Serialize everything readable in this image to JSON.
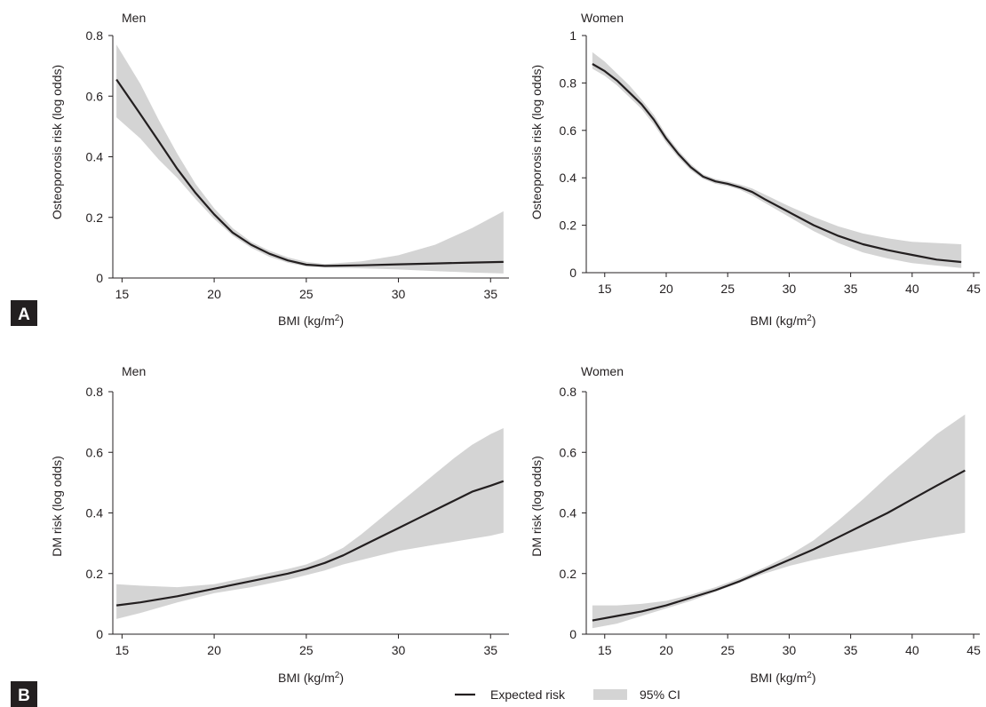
{
  "panel_labels": [
    "A",
    "B"
  ],
  "legend": {
    "expected_label": "Expected risk",
    "ci_label": "95% CI",
    "line_color": "#231f20",
    "band_color": "#d4d4d4"
  },
  "chart_data": [
    {
      "type": "line",
      "title": "Men",
      "xlabel": "BMI (kg/m²)",
      "ylabel": "Osteoporosis risk (log odds)",
      "xlim": [
        14.5,
        36
      ],
      "ylim": [
        0,
        0.8
      ],
      "xticks": [
        15,
        20,
        25,
        30,
        35
      ],
      "yticks": [
        0,
        0.2,
        0.4,
        0.6,
        0.8
      ],
      "ytick_labels": [
        "0",
        "0.2",
        "0.4",
        "0.6",
        "0.8"
      ],
      "series": [
        {
          "name": "Expected risk",
          "x": [
            14.7,
            16,
            17,
            18,
            19,
            20,
            21,
            22,
            23,
            24,
            25,
            26,
            28,
            30,
            32,
            34,
            35.7
          ],
          "y": [
            0.655,
            0.54,
            0.45,
            0.36,
            0.28,
            0.21,
            0.15,
            0.11,
            0.08,
            0.058,
            0.044,
            0.04,
            0.042,
            0.045,
            0.048,
            0.051,
            0.053
          ],
          "lower": [
            0.53,
            0.46,
            0.39,
            0.33,
            0.26,
            0.195,
            0.14,
            0.1,
            0.07,
            0.05,
            0.038,
            0.035,
            0.032,
            0.028,
            0.023,
            0.018,
            0.015
          ],
          "upper": [
            0.77,
            0.64,
            0.52,
            0.41,
            0.31,
            0.23,
            0.165,
            0.12,
            0.09,
            0.068,
            0.053,
            0.046,
            0.055,
            0.075,
            0.11,
            0.165,
            0.22
          ]
        }
      ]
    },
    {
      "type": "line",
      "title": "Women",
      "xlabel": "BMI (kg/m²)",
      "ylabel": "Osteoporosis risk (log odds)",
      "xlim": [
        13.5,
        45.5
      ],
      "ylim": [
        0,
        1
      ],
      "xticks": [
        15,
        20,
        25,
        30,
        35,
        40,
        45
      ],
      "yticks": [
        0,
        0.2,
        0.4,
        0.6,
        0.8,
        1
      ],
      "ytick_labels": [
        "0",
        "0.2",
        "0.4",
        "0.6",
        "0.8",
        "1"
      ],
      "series": [
        {
          "name": "Expected risk",
          "x": [
            14,
            15,
            16,
            17,
            18,
            19,
            20,
            21,
            22,
            23,
            24,
            25,
            26,
            27,
            28,
            30,
            32,
            34,
            36,
            38,
            40,
            42,
            44
          ],
          "y": [
            0.88,
            0.85,
            0.81,
            0.76,
            0.71,
            0.645,
            0.565,
            0.5,
            0.445,
            0.405,
            0.385,
            0.375,
            0.36,
            0.34,
            0.31,
            0.255,
            0.2,
            0.155,
            0.12,
            0.095,
            0.075,
            0.055,
            0.045
          ],
          "lower": [
            0.86,
            0.83,
            0.79,
            0.74,
            0.69,
            0.625,
            0.548,
            0.485,
            0.432,
            0.395,
            0.375,
            0.365,
            0.35,
            0.325,
            0.295,
            0.235,
            0.175,
            0.125,
            0.085,
            0.06,
            0.04,
            0.03,
            0.02
          ],
          "upper": [
            0.93,
            0.89,
            0.84,
            0.79,
            0.73,
            0.665,
            0.582,
            0.515,
            0.458,
            0.415,
            0.395,
            0.385,
            0.372,
            0.355,
            0.33,
            0.28,
            0.235,
            0.195,
            0.165,
            0.145,
            0.13,
            0.125,
            0.12
          ]
        }
      ]
    },
    {
      "type": "line",
      "title": "Men",
      "xlabel": "BMI (kg/m²)",
      "ylabel": "DM risk (log odds)",
      "xlim": [
        14.5,
        36
      ],
      "ylim": [
        0,
        0.8
      ],
      "xticks": [
        15,
        20,
        25,
        30,
        35
      ],
      "yticks": [
        0,
        0.2,
        0.4,
        0.6,
        0.8
      ],
      "ytick_labels": [
        "0",
        "0.2",
        "0.4",
        "0.6",
        "0.8"
      ],
      "series": [
        {
          "name": "Expected risk",
          "x": [
            14.7,
            16,
            18,
            20,
            22,
            24,
            25,
            26,
            27,
            28,
            29,
            30,
            31,
            32,
            33,
            34,
            35,
            35.7
          ],
          "y": [
            0.095,
            0.105,
            0.125,
            0.15,
            0.175,
            0.2,
            0.215,
            0.235,
            0.26,
            0.29,
            0.32,
            0.35,
            0.38,
            0.41,
            0.44,
            0.47,
            0.49,
            0.505
          ],
          "lower": [
            0.05,
            0.07,
            0.105,
            0.135,
            0.155,
            0.18,
            0.195,
            0.21,
            0.23,
            0.245,
            0.26,
            0.275,
            0.285,
            0.295,
            0.305,
            0.315,
            0.325,
            0.335
          ],
          "upper": [
            0.165,
            0.16,
            0.155,
            0.165,
            0.19,
            0.215,
            0.23,
            0.255,
            0.285,
            0.33,
            0.38,
            0.43,
            0.48,
            0.53,
            0.58,
            0.625,
            0.66,
            0.68
          ]
        }
      ]
    },
    {
      "type": "line",
      "title": "Women",
      "xlabel": "BMI (kg/m²)",
      "ylabel": "DM risk (log odds)",
      "xlim": [
        13.5,
        45.5
      ],
      "ylim": [
        0,
        0.8
      ],
      "xticks": [
        15,
        20,
        25,
        30,
        35,
        40,
        45
      ],
      "yticks": [
        0,
        0.2,
        0.4,
        0.6,
        0.8
      ],
      "ytick_labels": [
        "0",
        "0.2",
        "0.4",
        "0.6",
        "0.8"
      ],
      "series": [
        {
          "name": "Expected risk",
          "x": [
            14,
            16,
            18,
            20,
            22,
            24,
            26,
            28,
            30,
            32,
            34,
            36,
            38,
            40,
            42,
            44.3
          ],
          "y": [
            0.045,
            0.06,
            0.075,
            0.095,
            0.12,
            0.145,
            0.175,
            0.21,
            0.245,
            0.28,
            0.32,
            0.36,
            0.4,
            0.445,
            0.49,
            0.54
          ],
          "lower": [
            0.02,
            0.035,
            0.06,
            0.085,
            0.11,
            0.14,
            0.17,
            0.2,
            0.225,
            0.245,
            0.262,
            0.277,
            0.292,
            0.307,
            0.32,
            0.335
          ],
          "upper": [
            0.095,
            0.095,
            0.1,
            0.11,
            0.13,
            0.155,
            0.185,
            0.22,
            0.26,
            0.31,
            0.375,
            0.445,
            0.52,
            0.59,
            0.66,
            0.725
          ]
        }
      ]
    }
  ]
}
